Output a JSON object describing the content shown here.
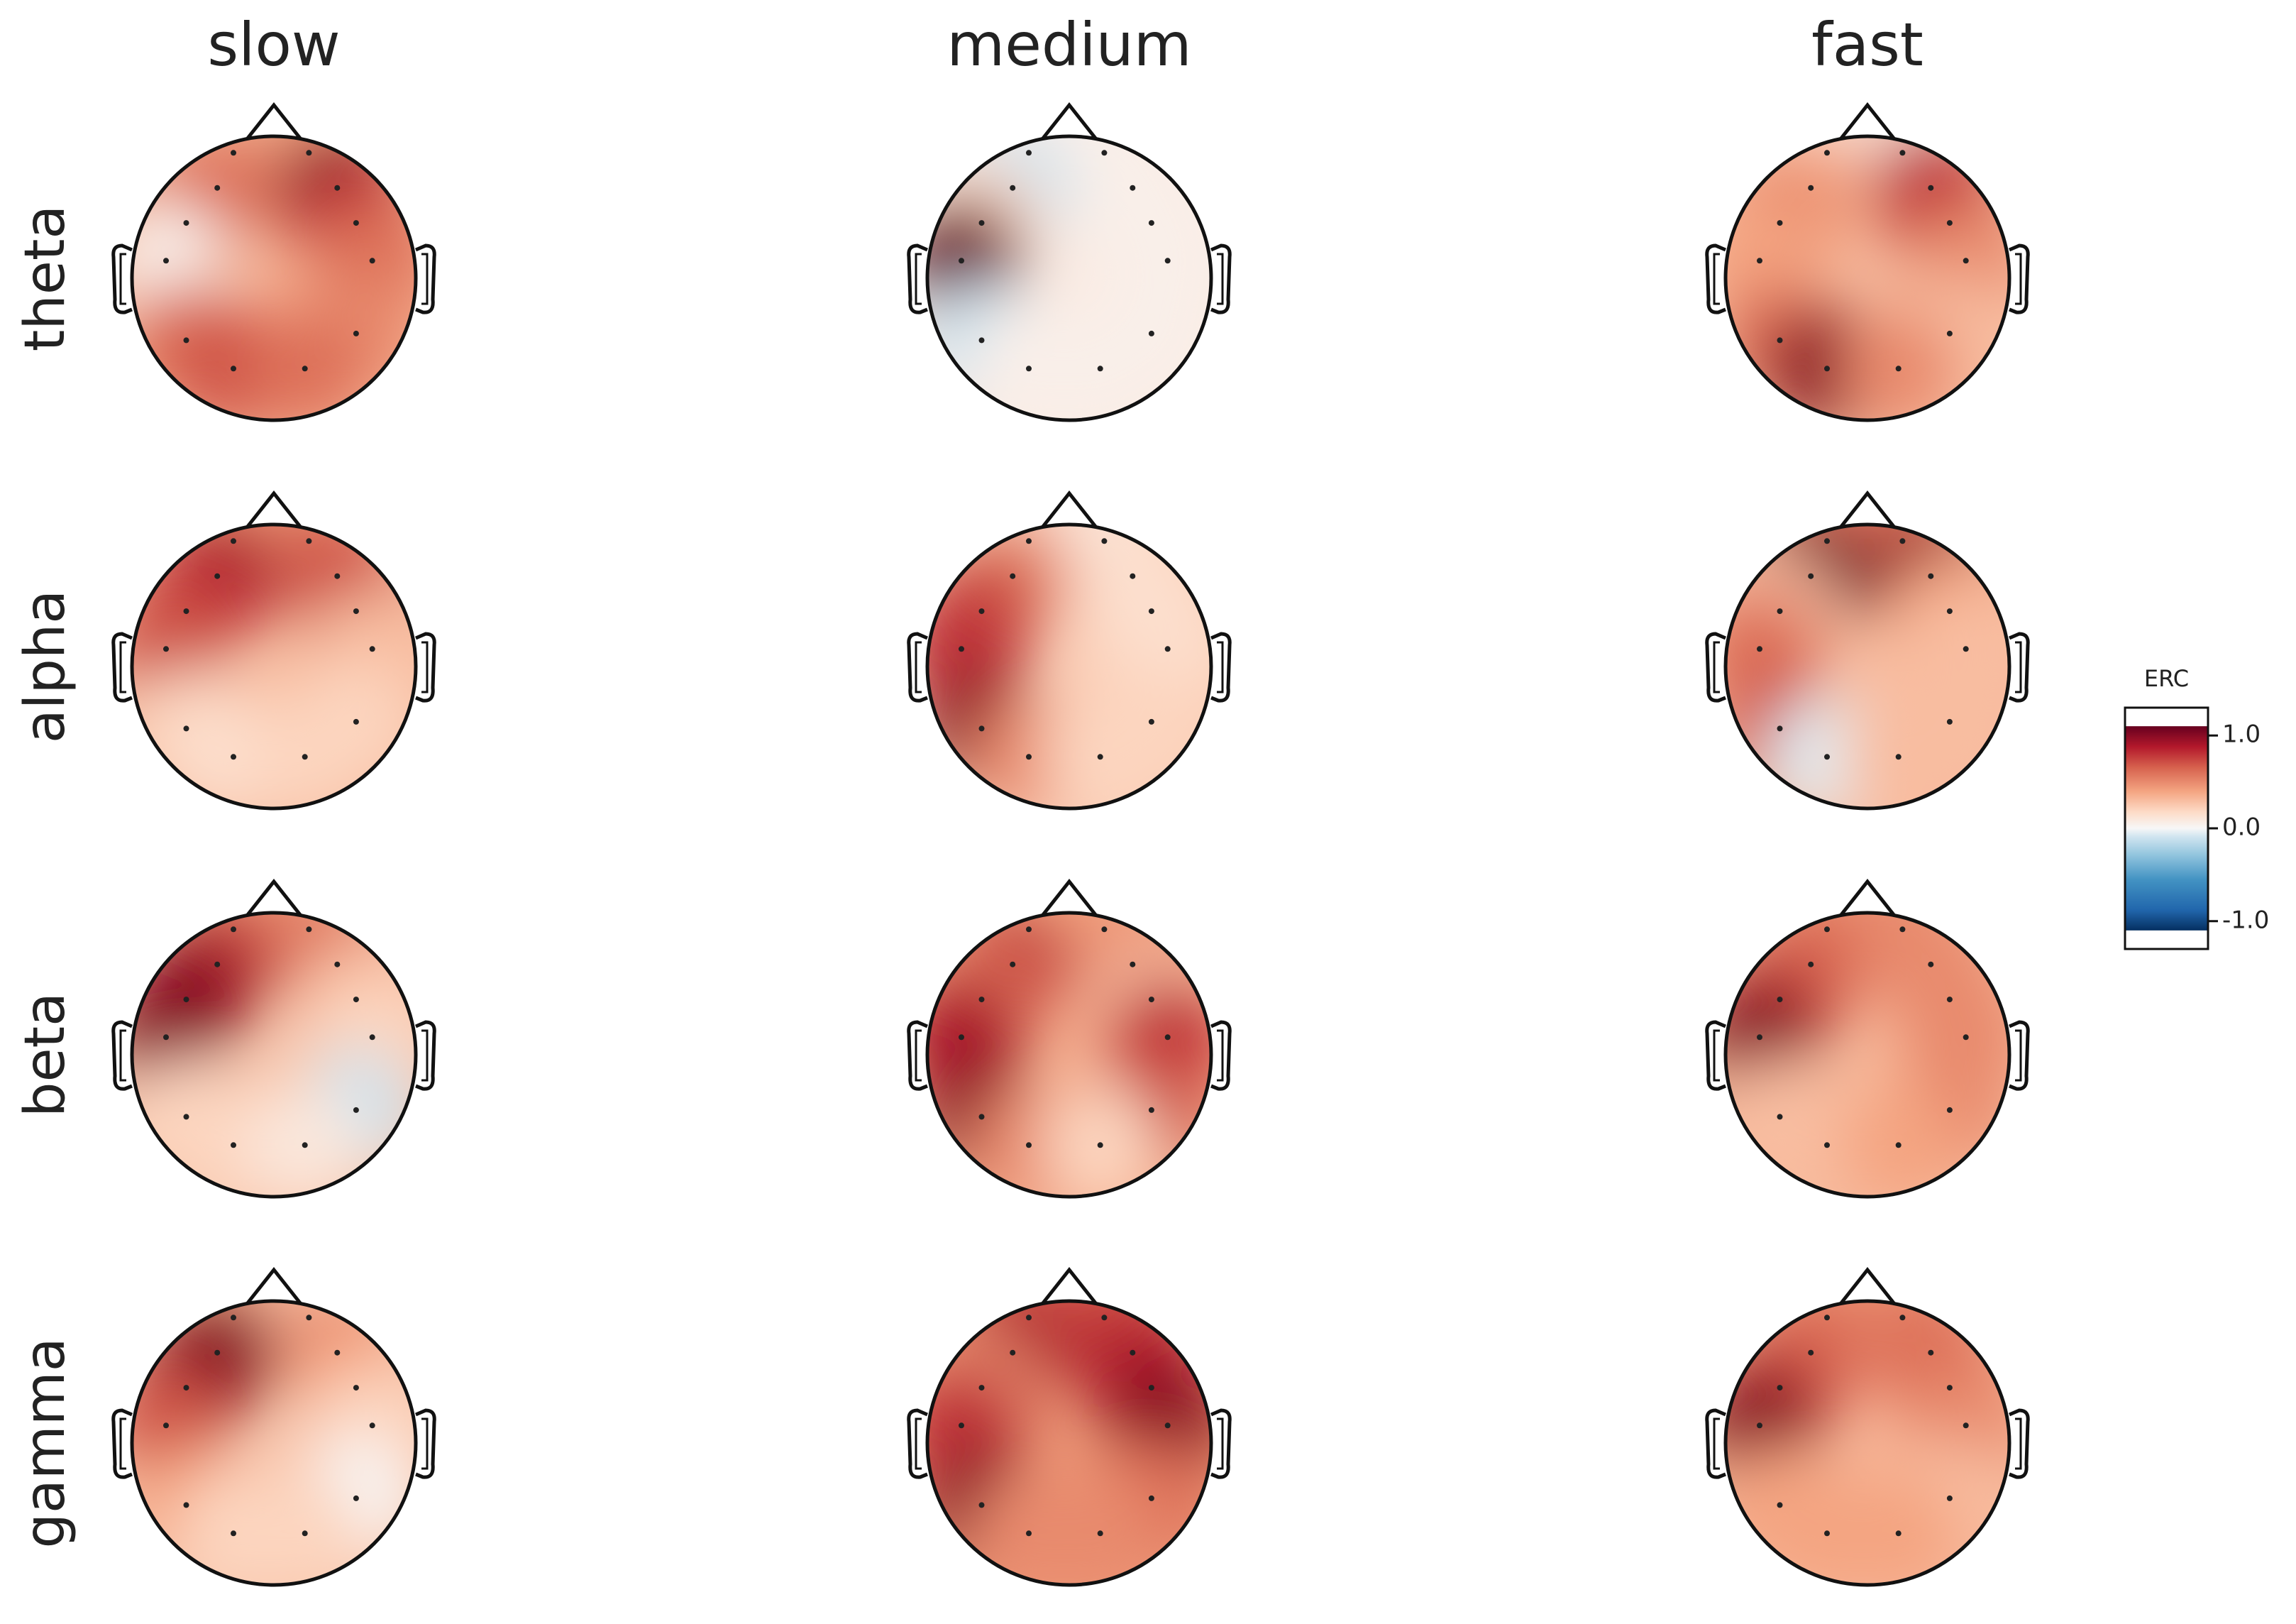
{
  "chart_data": {
    "type": "topomap",
    "columns": [
      "slow",
      "medium",
      "fast"
    ],
    "rows": [
      "theta",
      "alpha",
      "beta",
      "gamma"
    ],
    "panels": [
      [
        [
          0.3,
          0.4,
          0.6,
          1.0,
          0.6,
          0.8,
          0.05,
          0.6,
          0.6,
          0.5,
          0.7,
          0.6
        ],
        [
          0.05,
          0.05,
          -0.1,
          0.05,
          0.2,
          0.05,
          1.1,
          0.05,
          -0.1,
          0.05,
          0.05,
          0.05
        ],
        [
          0.1,
          0.1,
          0.4,
          0.8,
          0.5,
          0.8,
          0.4,
          0.5,
          0.6,
          0.3,
          1.0,
          0.5
        ]
      ],
      [
        [
          0.5,
          0.5,
          0.9,
          0.7,
          0.8,
          0.7,
          0.7,
          0.3,
          0.2,
          0.2,
          0.15,
          0.2
        ],
        [
          0.2,
          0.1,
          0.5,
          0.15,
          0.7,
          0.15,
          0.8,
          0.15,
          1.0,
          0.2,
          0.5,
          0.2
        ],
        [
          0.6,
          0.6,
          1.1,
          1.0,
          0.3,
          0.4,
          0.6,
          0.3,
          0.7,
          0.3,
          -0.05,
          0.3
        ]
      ],
      [
        [
          0.5,
          0.5,
          0.8,
          0.6,
          1.0,
          0.3,
          1.0,
          0.2,
          0.2,
          -0.1,
          0.2,
          0.1
        ],
        [
          0.4,
          0.4,
          0.8,
          0.5,
          0.6,
          0.3,
          0.9,
          0.8,
          1.0,
          0.7,
          0.5,
          0.2
        ],
        [
          0.5,
          0.5,
          0.6,
          0.5,
          0.7,
          0.5,
          1.0,
          0.5,
          0.3,
          0.5,
          0.3,
          0.4
        ]
      ],
      [
        [
          0.4,
          0.3,
          1.0,
          0.5,
          1.0,
          0.4,
          0.7,
          0.2,
          0.4,
          0.0,
          0.2,
          0.2
        ],
        [
          0.7,
          0.7,
          0.9,
          0.8,
          0.5,
          0.9,
          0.8,
          1.0,
          1.0,
          0.6,
          0.5,
          0.5
        ],
        [
          0.5,
          0.5,
          0.6,
          0.6,
          0.7,
          0.6,
          1.0,
          0.5,
          0.4,
          0.3,
          0.4,
          0.4
        ]
      ]
    ],
    "colorbar": {
      "label": "ERC",
      "cmap": "RdBu_r",
      "lim": [
        -1.3,
        1.3
      ],
      "vlim": [
        -1.1,
        1.1
      ],
      "ticks": [
        {
          "value": 1,
          "label": "1.0"
        },
        {
          "value": 0,
          "label": "0.0"
        },
        {
          "value": -1,
          "label": "-1.0"
        }
      ]
    }
  }
}
